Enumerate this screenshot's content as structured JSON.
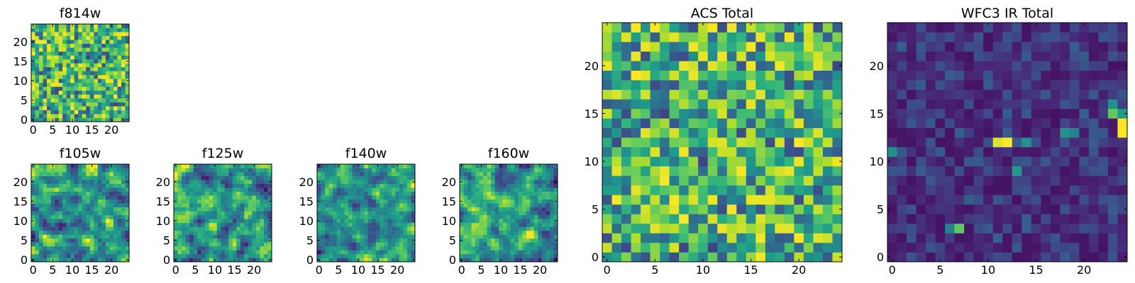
{
  "chart_data": [
    {
      "type": "heatmap",
      "title": "f814w",
      "xlim": [
        -0.5,
        24.5
      ],
      "ylim": [
        -0.5,
        24.5
      ],
      "xticks": [
        0,
        5,
        10,
        15,
        20
      ],
      "yticks": [
        0,
        5,
        10,
        15,
        20
      ],
      "grid": false,
      "colormap": "viridis",
      "smoothness": 0,
      "seed": 11,
      "distribution": "bright"
    },
    {
      "type": "heatmap",
      "title": "f105w",
      "xlim": [
        -0.5,
        24.5
      ],
      "ylim": [
        -0.5,
        24.5
      ],
      "xticks": [
        0,
        5,
        10,
        15,
        20
      ],
      "yticks": [
        0,
        5,
        10,
        15,
        20
      ],
      "grid": false,
      "colormap": "viridis",
      "smoothness": 1,
      "seed": 23,
      "distribution": "bright"
    },
    {
      "type": "heatmap",
      "title": "f125w",
      "xlim": [
        -0.5,
        24.5
      ],
      "ylim": [
        -0.5,
        24.5
      ],
      "xticks": [
        0,
        5,
        10,
        15,
        20
      ],
      "yticks": [
        0,
        5,
        10,
        15,
        20
      ],
      "grid": false,
      "colormap": "viridis",
      "smoothness": 1,
      "seed": 37,
      "distribution": "bright"
    },
    {
      "type": "heatmap",
      "title": "f140w",
      "xlim": [
        -0.5,
        24.5
      ],
      "ylim": [
        -0.5,
        24.5
      ],
      "xticks": [
        0,
        5,
        10,
        15,
        20
      ],
      "yticks": [
        0,
        5,
        10,
        15,
        20
      ],
      "grid": false,
      "colormap": "viridis",
      "smoothness": 1,
      "seed": 41,
      "distribution": "bright"
    },
    {
      "type": "heatmap",
      "title": "f160w",
      "xlim": [
        -0.5,
        24.5
      ],
      "ylim": [
        -0.5,
        24.5
      ],
      "xticks": [
        0,
        5,
        10,
        15,
        20
      ],
      "yticks": [
        0,
        5,
        10,
        15,
        20
      ],
      "grid": false,
      "colormap": "viridis",
      "smoothness": 1,
      "seed": 53,
      "distribution": "bright"
    },
    {
      "type": "heatmap",
      "title": "ACS Total",
      "xlim": [
        -0.5,
        24.5
      ],
      "ylim": [
        -0.5,
        24.5
      ],
      "xticks": [
        0,
        5,
        10,
        15,
        20
      ],
      "yticks": [
        0,
        5,
        10,
        15,
        20
      ],
      "grid": false,
      "colormap": "viridis",
      "smoothness": 0,
      "seed": 67,
      "distribution": "bright"
    },
    {
      "type": "heatmap",
      "title": "WFC3 IR Total",
      "xlim": [
        -0.5,
        24.5
      ],
      "ylim": [
        -0.5,
        24.5
      ],
      "xticks": [
        0,
        5,
        10,
        15,
        20
      ],
      "yticks": [
        0,
        5,
        10,
        15,
        20
      ],
      "grid": false,
      "colormap": "viridis",
      "smoothness": 0,
      "seed": 79,
      "distribution": "dark",
      "hotspots": [
        {
          "x": 12,
          "y": 12,
          "value": 1.0
        },
        {
          "x": 11,
          "y": 12,
          "value": 0.95
        },
        {
          "x": 24,
          "y": 14,
          "value": 1.0
        },
        {
          "x": 24,
          "y": 13,
          "value": 1.0
        },
        {
          "x": 23,
          "y": 15,
          "value": 0.75
        },
        {
          "x": 24,
          "y": 15,
          "value": 0.55
        },
        {
          "x": 23,
          "y": 16,
          "value": 0.5
        },
        {
          "x": 18,
          "y": 13,
          "value": 0.5
        },
        {
          "x": 19,
          "y": 13,
          "value": 0.45
        },
        {
          "x": 14,
          "y": 12,
          "value": 0.5
        },
        {
          "x": 13,
          "y": 9,
          "value": 0.55
        },
        {
          "x": 0,
          "y": 11,
          "value": 0.5
        },
        {
          "x": 7,
          "y": 3,
          "value": 0.75
        },
        {
          "x": 6,
          "y": 3,
          "value": 0.45
        }
      ]
    }
  ]
}
